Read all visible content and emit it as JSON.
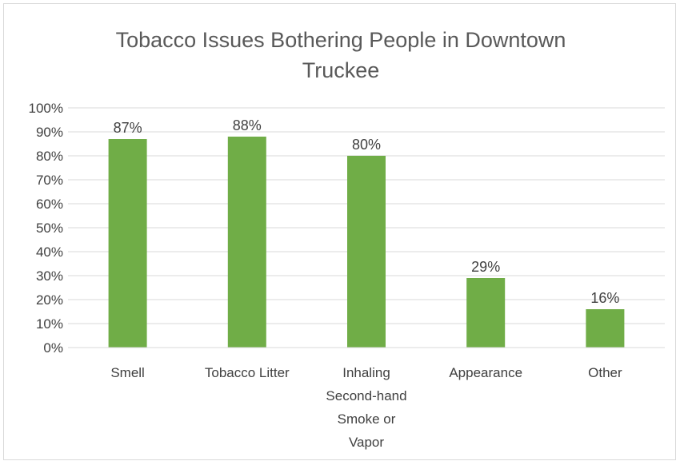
{
  "chart_data": {
    "type": "bar",
    "title_lines": [
      "Tobacco Issues Bothering People in Downtown",
      "Truckee"
    ],
    "categories": [
      [
        "Smell"
      ],
      [
        "Tobacco Litter"
      ],
      [
        "Inhaling",
        "Second-hand",
        "Smoke or",
        "Vapor"
      ],
      [
        "Appearance"
      ],
      [
        "Other"
      ]
    ],
    "values": [
      87,
      88,
      80,
      29,
      16
    ],
    "data_labels": [
      "87%",
      "88%",
      "80%",
      "29%",
      "16%"
    ],
    "ylim": [
      0,
      100
    ],
    "y_ticks": [
      0,
      10,
      20,
      30,
      40,
      50,
      60,
      70,
      80,
      90,
      100
    ],
    "y_tick_format": "percent",
    "grid": true,
    "legend": "none",
    "colors": {
      "bar": "#70ad47",
      "grid": "#d9d9d9",
      "text": "#404040",
      "title": "#595959"
    }
  }
}
